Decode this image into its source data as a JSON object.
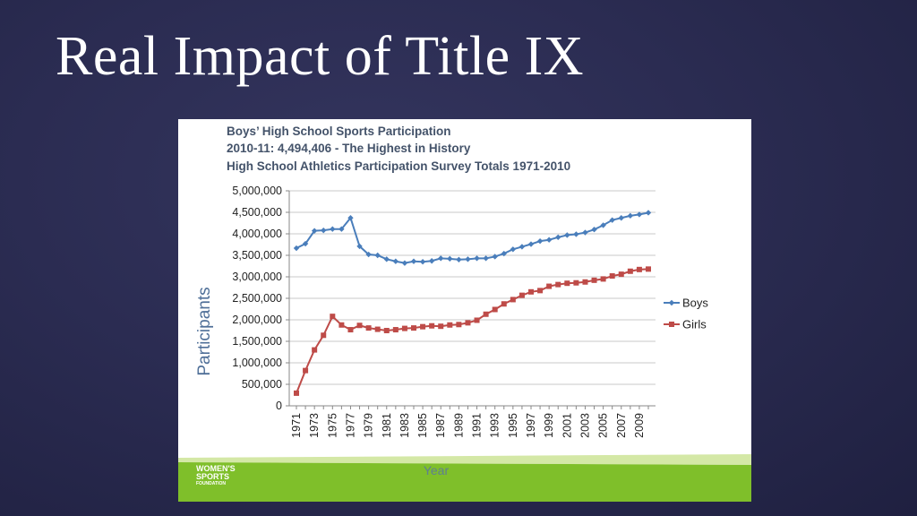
{
  "slide": {
    "title": "Real Impact of Title IX"
  },
  "logo": {
    "line1": "WOMEN'S",
    "line2": "SPORTS",
    "line3": "FOUNDATION"
  },
  "chart_data": {
    "type": "line",
    "title_lines": [
      "Boys’ High School Sports Participation",
      "2010-11: 4,494,406 - The Highest in History",
      "High School Athletics Participation Survey Totals 1971-2010"
    ],
    "xlabel": "Year",
    "ylabel": "Participants",
    "ylim": [
      0,
      5000000
    ],
    "yticks": [
      0,
      500000,
      1000000,
      1500000,
      2000000,
      2500000,
      3000000,
      3500000,
      4000000,
      4500000,
      5000000
    ],
    "ytick_labels": [
      "0",
      "500,000",
      "1,000,000",
      "1,500,000",
      "2,000,000",
      "2,500,000",
      "3,000,000",
      "3,500,000",
      "4,000,000",
      "4,500,000",
      "5,000,000"
    ],
    "x": [
      1971,
      1972,
      1973,
      1974,
      1975,
      1976,
      1977,
      1978,
      1979,
      1980,
      1981,
      1982,
      1983,
      1984,
      1985,
      1986,
      1987,
      1988,
      1989,
      1990,
      1991,
      1992,
      1993,
      1994,
      1995,
      1996,
      1997,
      1998,
      1999,
      2000,
      2001,
      2002,
      2003,
      2004,
      2005,
      2006,
      2007,
      2008,
      2009,
      2010
    ],
    "xtick_labels": [
      "1971",
      "1973",
      "1975",
      "1977",
      "1979",
      "1981",
      "1983",
      "1985",
      "1987",
      "1989",
      "1991",
      "1993",
      "1995",
      "1997",
      "1999",
      "2001",
      "2003",
      "2005",
      "2007",
      "2009"
    ],
    "grid": true,
    "legend_position": "right",
    "series": [
      {
        "name": "Boys",
        "color": "#4a7ebb",
        "marker": "diamond",
        "values": [
          3666000,
          3770000,
          4070000,
          4080000,
          4110000,
          4110000,
          4370000,
          3710000,
          3520000,
          3500000,
          3410000,
          3360000,
          3320000,
          3360000,
          3350000,
          3370000,
          3430000,
          3420000,
          3400000,
          3410000,
          3430000,
          3430000,
          3470000,
          3540000,
          3640000,
          3700000,
          3760000,
          3830000,
          3860000,
          3920000,
          3970000,
          3990000,
          4030000,
          4100000,
          4200000,
          4320000,
          4370000,
          4420000,
          4450000,
          4490000
        ]
      },
      {
        "name": "Girls",
        "color": "#be4b48",
        "marker": "square",
        "values": [
          294000,
          820000,
          1300000,
          1640000,
          2080000,
          1880000,
          1770000,
          1870000,
          1810000,
          1780000,
          1750000,
          1770000,
          1800000,
          1810000,
          1840000,
          1860000,
          1850000,
          1880000,
          1890000,
          1930000,
          1990000,
          2130000,
          2240000,
          2370000,
          2470000,
          2570000,
          2650000,
          2680000,
          2780000,
          2820000,
          2850000,
          2860000,
          2880000,
          2920000,
          2950000,
          3020000,
          3060000,
          3130000,
          3170000,
          3180000
        ]
      }
    ]
  }
}
